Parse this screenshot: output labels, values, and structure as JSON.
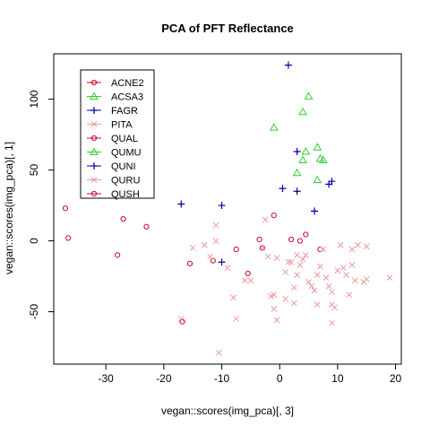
{
  "chart_data": {
    "type": "scatter",
    "title": "PCA of PFT Reflectance",
    "xlabel": "vegan::scores(img_pca)[, 3]",
    "ylabel": "vegan::scores(img_pca)[, 1]",
    "xlim": [
      -39,
      21
    ],
    "ylim": [
      -87,
      132
    ],
    "xticks": [
      -30,
      -20,
      -10,
      0,
      10,
      20
    ],
    "yticks": [
      -50,
      0,
      50,
      100
    ],
    "legend_position": "top-left",
    "colors": {
      "red": "#cc0033",
      "pink": "#ee9999",
      "green": "#33cc33",
      "blue": "#000099",
      "axis": "#000000"
    },
    "legend": [
      {
        "name": "ACNE2",
        "symbol": "circle",
        "color": "#cc0033"
      },
      {
        "name": "ACSA3",
        "symbol": "triangle",
        "color": "#33cc33"
      },
      {
        "name": "FAGR",
        "symbol": "plus",
        "color": "#000099"
      },
      {
        "name": "PITA",
        "symbol": "cross",
        "color": "#ee9999"
      },
      {
        "name": "QUAL",
        "symbol": "circle",
        "color": "#cc0033"
      },
      {
        "name": "QUMU",
        "symbol": "triangle",
        "color": "#33cc33"
      },
      {
        "name": "QUNI",
        "symbol": "plus",
        "color": "#000099"
      },
      {
        "name": "QURU",
        "symbol": "cross",
        "color": "#ee9999"
      },
      {
        "name": "QUSH",
        "symbol": "circle",
        "color": "#cc0033"
      }
    ],
    "series": [
      {
        "group": "circles",
        "symbol": "circle",
        "color": "#cc0033",
        "points": [
          [
            -37,
            23
          ],
          [
            -36.5,
            2
          ],
          [
            -27,
            15.5
          ],
          [
            -28,
            -10
          ],
          [
            -23,
            10
          ],
          [
            -16.8,
            -57
          ],
          [
            -15.5,
            -16
          ],
          [
            -11.5,
            -14
          ],
          [
            -7.5,
            -6
          ],
          [
            -5.5,
            -23
          ],
          [
            -3.5,
            1
          ],
          [
            -3,
            -5
          ],
          [
            -1,
            18
          ],
          [
            2,
            1
          ],
          [
            3.5,
            0
          ],
          [
            4.5,
            4.5
          ],
          [
            7,
            -6
          ]
        ]
      },
      {
        "group": "triangles",
        "symbol": "triangle",
        "color": "#33cc33",
        "points": [
          [
            -1,
            80
          ],
          [
            5,
            102
          ],
          [
            4,
            91
          ],
          [
            3,
            48
          ],
          [
            4,
            57
          ],
          [
            4.5,
            63
          ],
          [
            6.5,
            66
          ],
          [
            7,
            58
          ],
          [
            7.5,
            57
          ],
          [
            6.5,
            43
          ]
        ]
      },
      {
        "group": "plus",
        "symbol": "plus",
        "color": "#000099",
        "points": [
          [
            1.5,
            124
          ],
          [
            3,
            63
          ],
          [
            3,
            35
          ],
          [
            0.5,
            37
          ],
          [
            6,
            21
          ],
          [
            8.5,
            40
          ],
          [
            9,
            42
          ],
          [
            -17,
            26
          ],
          [
            -10,
            25
          ],
          [
            -10,
            -15
          ]
        ]
      },
      {
        "group": "crosses",
        "symbol": "cross",
        "color": "#ee9999",
        "points": [
          [
            -17,
            -55
          ],
          [
            -15,
            -5
          ],
          [
            -13,
            -3
          ],
          [
            -12,
            -11
          ],
          [
            -11,
            11
          ],
          [
            -11,
            0
          ],
          [
            -10.5,
            -79
          ],
          [
            -9,
            -19
          ],
          [
            -8,
            -40
          ],
          [
            -7.5,
            -55
          ],
          [
            -6,
            -28
          ],
          [
            -5,
            -28
          ],
          [
            -3,
            -5
          ],
          [
            -2.5,
            15
          ],
          [
            -2,
            -11
          ],
          [
            -1.5,
            -39
          ],
          [
            -1,
            -38
          ],
          [
            -1,
            -48
          ],
          [
            -0.5,
            -56
          ],
          [
            -0.5,
            -12
          ],
          [
            1,
            -22
          ],
          [
            1,
            -41
          ],
          [
            1.5,
            -15
          ],
          [
            2,
            -15
          ],
          [
            2.5,
            -33
          ],
          [
            2.5,
            -44
          ],
          [
            3,
            -10
          ],
          [
            3,
            -24
          ],
          [
            3.5,
            -17
          ],
          [
            4,
            -13
          ],
          [
            4.5,
            -10
          ],
          [
            5,
            -29
          ],
          [
            5.5,
            -32
          ],
          [
            6,
            -35
          ],
          [
            6.5,
            -24
          ],
          [
            6.5,
            -45
          ],
          [
            7,
            -18
          ],
          [
            7.5,
            -6
          ],
          [
            8,
            -26
          ],
          [
            8.5,
            -32
          ],
          [
            9,
            -36
          ],
          [
            9,
            -45
          ],
          [
            9,
            -58
          ],
          [
            9.5,
            -47
          ],
          [
            10,
            -21
          ],
          [
            10.5,
            -3
          ],
          [
            11,
            -19
          ],
          [
            11.5,
            -24
          ],
          [
            12,
            -38
          ],
          [
            12.5,
            -6
          ],
          [
            12.5,
            -17
          ],
          [
            13,
            -28
          ],
          [
            13.5,
            -3
          ],
          [
            14.5,
            -29
          ],
          [
            15,
            -4
          ],
          [
            15,
            -27
          ],
          [
            19,
            -26
          ]
        ]
      }
    ]
  }
}
